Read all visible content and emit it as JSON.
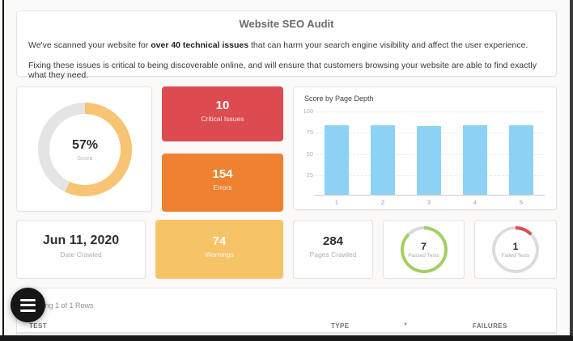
{
  "header": {
    "title": "Website SEO Audit",
    "p1_prefix": "We've scanned your website for ",
    "p1_bold": "over 40 technical issues",
    "p1_suffix": " that can harm your search engine visibility and affect the user experience.",
    "p2": "Fixing these issues is critical to being discoverable online, and will ensure that customers browsing your website are able to find exactly what they need."
  },
  "score_card": {
    "value": "57%",
    "label": "Score",
    "percent": 57,
    "arc_color": "#f6c472",
    "track_color": "#e4e4e4"
  },
  "cards": {
    "critical": {
      "value": "10",
      "label": "Critical Issues",
      "bg": "#dc4b50"
    },
    "errors": {
      "value": "154",
      "label": "Errors",
      "bg": "#ee8230"
    },
    "warnings": {
      "value": "74",
      "label": "Warnings",
      "bg": "#f6c366"
    },
    "date": {
      "value": "Jun 11, 2020",
      "label": "Date Crawled"
    },
    "pages": {
      "value": "284",
      "label": "Pages Crawled"
    }
  },
  "passed_card": {
    "value": "7",
    "label": "Passed Tests",
    "count": 7,
    "total": 8,
    "arc_color": "#a3cf62",
    "track_color": "#d9d9d9"
  },
  "failed_card": {
    "value": "1",
    "label": "Failed Tests",
    "count": 1,
    "total": 8,
    "arc_color": "#dc4b50",
    "track_color": "#dcdcdc"
  },
  "chart_data": {
    "type": "bar",
    "title": "Score by Page Depth",
    "categories": [
      "1",
      "2",
      "3",
      "4",
      "5"
    ],
    "values": [
      84,
      84,
      83,
      84,
      84
    ],
    "yticks": [
      100,
      75,
      50,
      25
    ],
    "ylim": [
      0,
      100
    ],
    "xlabel": "",
    "ylabel": "",
    "bar_color": "#8dd2f4",
    "grid": "horizontal-dashed",
    "legend": "none"
  },
  "table": {
    "rows_info": "Showing 1 of 1 Rows",
    "columns": [
      "TEST",
      "TYPE",
      "FAILURES"
    ],
    "sort_icon": "▼"
  }
}
